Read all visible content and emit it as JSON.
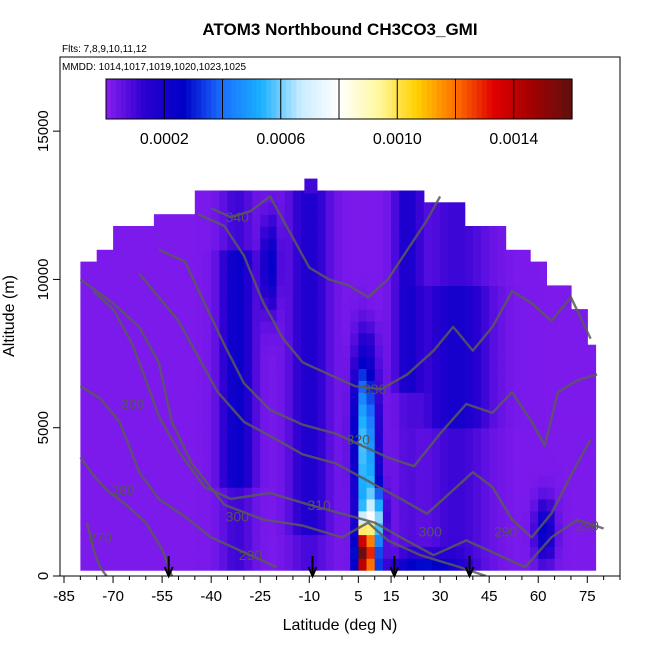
{
  "chart_data": {
    "type": "heatmap",
    "title": "ATOM3 Northbound CH3CO3_GMI",
    "flights_text": "Flts: 7,8,9,10,11,12",
    "mmdd_text": "MMDD: 1014,1017,1019,1020,1023,1025",
    "xlabel": "Latitude (deg N)",
    "ylabel": "Altitude (m)",
    "xlim": [
      -85,
      85
    ],
    "ylim": [
      0,
      17500
    ],
    "x_ticks": [
      -85,
      -70,
      -55,
      -40,
      -25,
      -10,
      5,
      15,
      30,
      45,
      60,
      75
    ],
    "x_tick_labels": [
      "-85",
      "-70",
      "-55",
      "-40",
      "-25",
      "-10",
      "5",
      "15",
      "30",
      "45",
      "60",
      "75"
    ],
    "y_ticks": [
      0,
      5000,
      10000,
      15000
    ],
    "y_tick_labels": [
      "0",
      "5000",
      "10000",
      "15000"
    ],
    "colorbar": {
      "min": 0.0,
      "max": 0.0016,
      "tick_values": [
        0.0002,
        0.0006,
        0.001,
        0.0014
      ],
      "tick_labels": [
        "0.0002",
        "0.0006",
        "0.0010",
        "0.0014"
      ],
      "colors": [
        "#8a1ef0",
        "#2a00d0",
        "#0000c8",
        "#1a70ff",
        "#1ab0ff",
        "#c8ecff",
        "#ffffff",
        "#fff8a0",
        "#ffd000",
        "#ff7000",
        "#e00000",
        "#a00000",
        "#601010"
      ]
    },
    "flight_markers_lat": [
      -53,
      -9,
      16,
      39
    ],
    "contours": [
      {
        "level": "270",
        "label_lat": -74,
        "label_alt": 1300
      },
      {
        "level": "280",
        "label_lat": -67,
        "label_alt": 2900
      },
      {
        "level": "290",
        "label_lat": -28,
        "label_alt": 700
      },
      {
        "level": "290",
        "label_lat": 50,
        "label_alt": 1500
      },
      {
        "level": "290",
        "label_lat": 75,
        "label_alt": 1700
      },
      {
        "level": "300",
        "label_lat": -32,
        "label_alt": 2000
      },
      {
        "level": "300",
        "label_lat": 27,
        "label_alt": 1500
      },
      {
        "level": "300",
        "label_lat": -64,
        "label_alt": 5800
      },
      {
        "level": "310",
        "label_lat": -7,
        "label_alt": 2400
      },
      {
        "level": "320",
        "label_lat": 5,
        "label_alt": 4600
      },
      {
        "level": "330",
        "label_lat": 10,
        "label_alt": 6300
      },
      {
        "level": "340",
        "label_lat": -32,
        "label_alt": 12100
      }
    ]
  }
}
